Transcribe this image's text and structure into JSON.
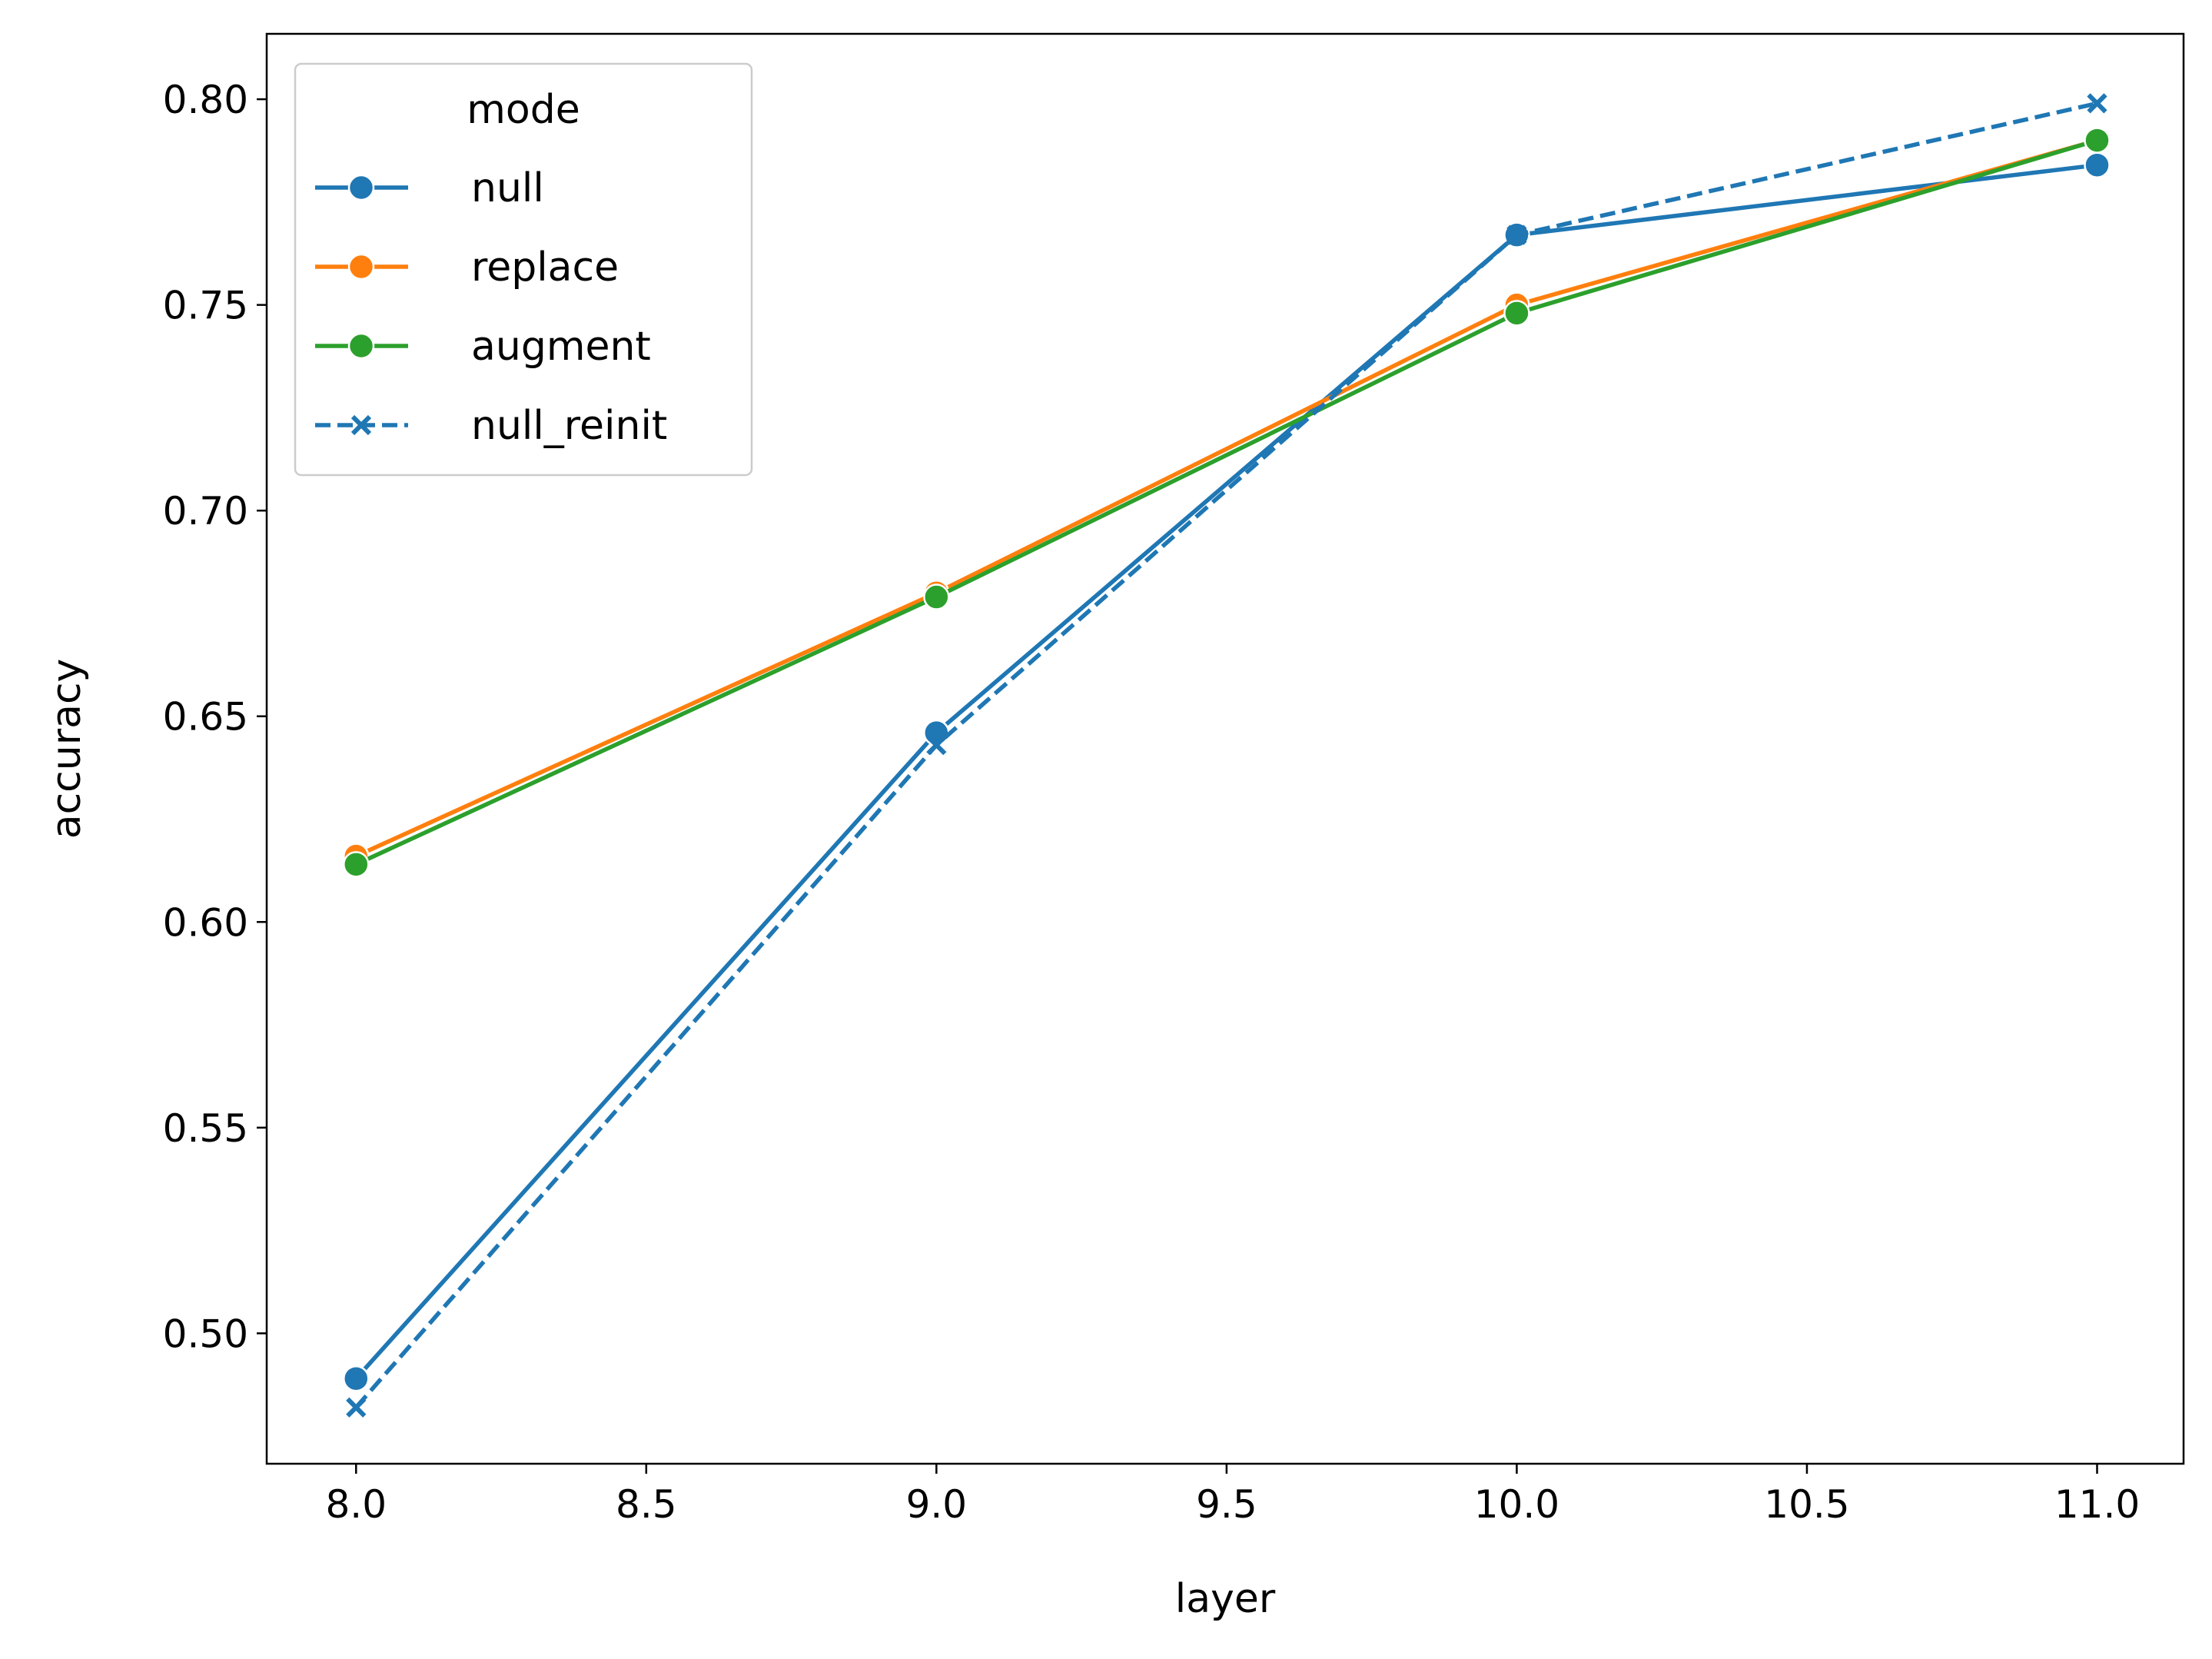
{
  "chart_data": {
    "type": "line",
    "title": "",
    "xlabel": "layer",
    "ylabel": "accuracy",
    "xlim": [
      7.846,
      11.149
    ],
    "ylim": [
      0.4683,
      0.8159
    ],
    "xticks": [
      8.0,
      8.5,
      9.0,
      9.5,
      10.0,
      10.5,
      11.0
    ],
    "xtick_labels": [
      "8.0",
      "8.5",
      "9.0",
      "9.5",
      "10.0",
      "10.5",
      "11.0"
    ],
    "yticks": [
      0.5,
      0.55,
      0.6,
      0.65,
      0.7,
      0.75,
      0.8
    ],
    "ytick_labels": [
      "0.50",
      "0.55",
      "0.60",
      "0.65",
      "0.70",
      "0.75",
      "0.80"
    ],
    "grid": false,
    "legend": {
      "title": "mode",
      "placement": "top-left"
    },
    "x": [
      8,
      9,
      10,
      11
    ],
    "series": [
      {
        "name": "null",
        "values": [
          0.489,
          0.646,
          0.767,
          0.784
        ],
        "color": "#1f77b4",
        "marker": "circle",
        "dash": "solid"
      },
      {
        "name": "replace",
        "values": [
          0.616,
          0.68,
          0.75,
          0.79
        ],
        "color": "#ff7f0e",
        "marker": "circle",
        "dash": "solid"
      },
      {
        "name": "augment",
        "values": [
          0.614,
          0.679,
          0.748,
          0.79
        ],
        "color": "#2ca02c",
        "marker": "circle",
        "dash": "solid"
      },
      {
        "name": "null_reinit",
        "values": [
          0.482,
          0.643,
          0.767,
          0.799
        ],
        "color": "#1f77b4",
        "marker": "x",
        "dash": "dashed"
      }
    ]
  }
}
